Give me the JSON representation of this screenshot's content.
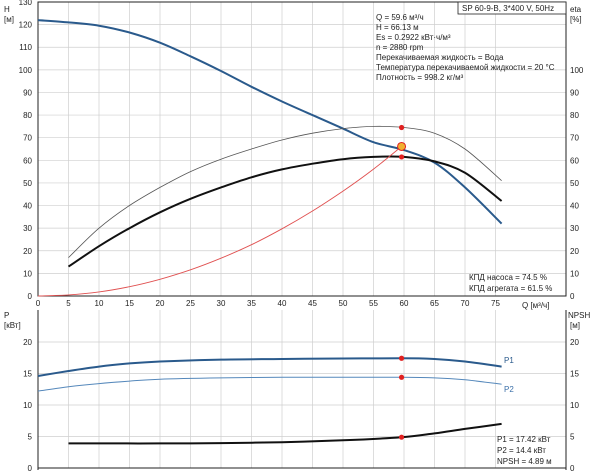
{
  "chart_data": [
    {
      "type": "line",
      "product": "SP 60-9-B, 3*400 V, 50Hz",
      "left_axis": {
        "label": "H",
        "unit": "[м]",
        "ylim": [
          0,
          130
        ],
        "ticks": [
          0,
          10,
          20,
          30,
          40,
          50,
          60,
          70,
          80,
          90,
          100,
          110,
          120,
          130
        ]
      },
      "right_axis": {
        "label": "eta",
        "unit": "[%]",
        "ylim": [
          0,
          130
        ],
        "ticks": [
          0,
          10,
          20,
          30,
          40,
          50,
          60,
          70,
          80,
          90,
          100
        ]
      },
      "x_axis": {
        "label": "Q [м³/ч]",
        "xlim": [
          0,
          80
        ],
        "ticks": [
          0,
          5,
          10,
          15,
          20,
          25,
          30,
          35,
          40,
          45,
          50,
          55,
          60,
          65,
          70,
          75
        ]
      },
      "info": [
        "Q = 59.6 м³/ч",
        "H = 66.13 м",
        "Es = 0.2922 кВт·ч/м³",
        "n = 2880 rpm",
        "Перекачиваемая жидкость = Вода",
        "Температура перекачиваемой жидкости = 20 °C",
        "Плотность = 998.2 кг/м³"
      ],
      "efficiency_notes": [
        "КПД насоса = 74.5 %",
        "КПД агрегата = 61.5 %"
      ],
      "series": [
        {
          "key": "head",
          "color": "#2a5a8c",
          "x": [
            0,
            5,
            10,
            15,
            20,
            25,
            30,
            35,
            40,
            45,
            50,
            55,
            60,
            65,
            70,
            76
          ],
          "y": [
            122,
            121,
            119.5,
            116.5,
            112,
            106,
            99.5,
            92.5,
            86,
            80,
            74,
            68,
            64.5,
            59,
            48,
            32
          ]
        },
        {
          "key": "pump_eff",
          "color": "#555555",
          "x": [
            5,
            10,
            15,
            20,
            25,
            30,
            35,
            40,
            45,
            50,
            55,
            60,
            65,
            70,
            76
          ],
          "y": [
            17,
            30,
            40,
            48,
            55,
            60.5,
            65,
            69,
            72,
            74,
            75,
            74.5,
            72,
            65,
            51
          ]
        },
        {
          "key": "unit_eff",
          "color": "#111111",
          "x": [
            5,
            10,
            15,
            20,
            25,
            30,
            35,
            40,
            45,
            50,
            55,
            60,
            65,
            70,
            76
          ],
          "y": [
            13,
            22,
            30,
            37,
            43,
            48,
            52.5,
            56,
            58.5,
            60.5,
            61.5,
            61.5,
            59.5,
            54.5,
            42
          ]
        },
        {
          "key": "system",
          "color": "#e05050",
          "x": [
            0,
            5,
            10,
            15,
            20,
            25,
            30,
            35,
            40,
            45,
            50,
            55,
            59.6
          ],
          "y": [
            0,
            0.5,
            1.8,
            4.1,
            7.4,
            11.6,
            16.7,
            22.7,
            29.7,
            37.6,
            46.4,
            56.1,
            66.13
          ]
        }
      ],
      "markers": [
        {
          "x": 59.6,
          "y": 74.5,
          "color": "#e02020"
        },
        {
          "x": 59.6,
          "y": 61.5,
          "color": "#e02020"
        },
        {
          "x": 59.6,
          "y": 66.13,
          "color": "#f0b030",
          "outline": "#e02020"
        }
      ]
    },
    {
      "type": "line",
      "left_axis": {
        "label": "P",
        "unit": "[кВт]",
        "ylim": [
          0,
          22
        ],
        "ticks": [
          0,
          5,
          10,
          15,
          20
        ]
      },
      "right_axis": {
        "label": "NPSH",
        "unit": "[м]",
        "ylim": [
          0,
          22
        ],
        "ticks": [
          0,
          5,
          10,
          15,
          20
        ]
      },
      "xlim": [
        0,
        80
      ],
      "readouts": [
        "P1 = 17.42 кВт",
        "P2 = 14.4 кВт",
        "NPSH = 4.89 м"
      ],
      "series": [
        {
          "key": "p1",
          "name": "P1",
          "color": "#2a5a8c",
          "x": [
            0,
            5,
            10,
            15,
            20,
            30,
            40,
            50,
            59.6,
            65,
            70,
            76
          ],
          "y": [
            14.6,
            15.4,
            16.1,
            16.6,
            16.9,
            17.2,
            17.3,
            17.38,
            17.42,
            17.3,
            16.9,
            16.1
          ]
        },
        {
          "key": "p2",
          "name": "P2",
          "color": "#5588bb",
          "x": [
            0,
            5,
            10,
            15,
            20,
            30,
            40,
            50,
            59.6,
            65,
            70,
            76
          ],
          "y": [
            12.2,
            12.9,
            13.4,
            13.8,
            14.1,
            14.3,
            14.4,
            14.4,
            14.4,
            14.3,
            14.0,
            13.3
          ]
        },
        {
          "key": "npsh",
          "color": "#111111",
          "x": [
            5,
            10,
            20,
            30,
            40,
            50,
            59.6,
            65,
            70,
            76
          ],
          "y": [
            3.9,
            3.9,
            3.9,
            3.95,
            4.1,
            4.4,
            4.89,
            5.5,
            6.2,
            7.0
          ]
        }
      ],
      "markers": [
        {
          "x": 59.6,
          "y": 17.42,
          "color": "#e02020"
        },
        {
          "x": 59.6,
          "y": 14.4,
          "color": "#e02020"
        },
        {
          "x": 59.6,
          "y": 4.89,
          "color": "#e02020"
        }
      ]
    }
  ]
}
